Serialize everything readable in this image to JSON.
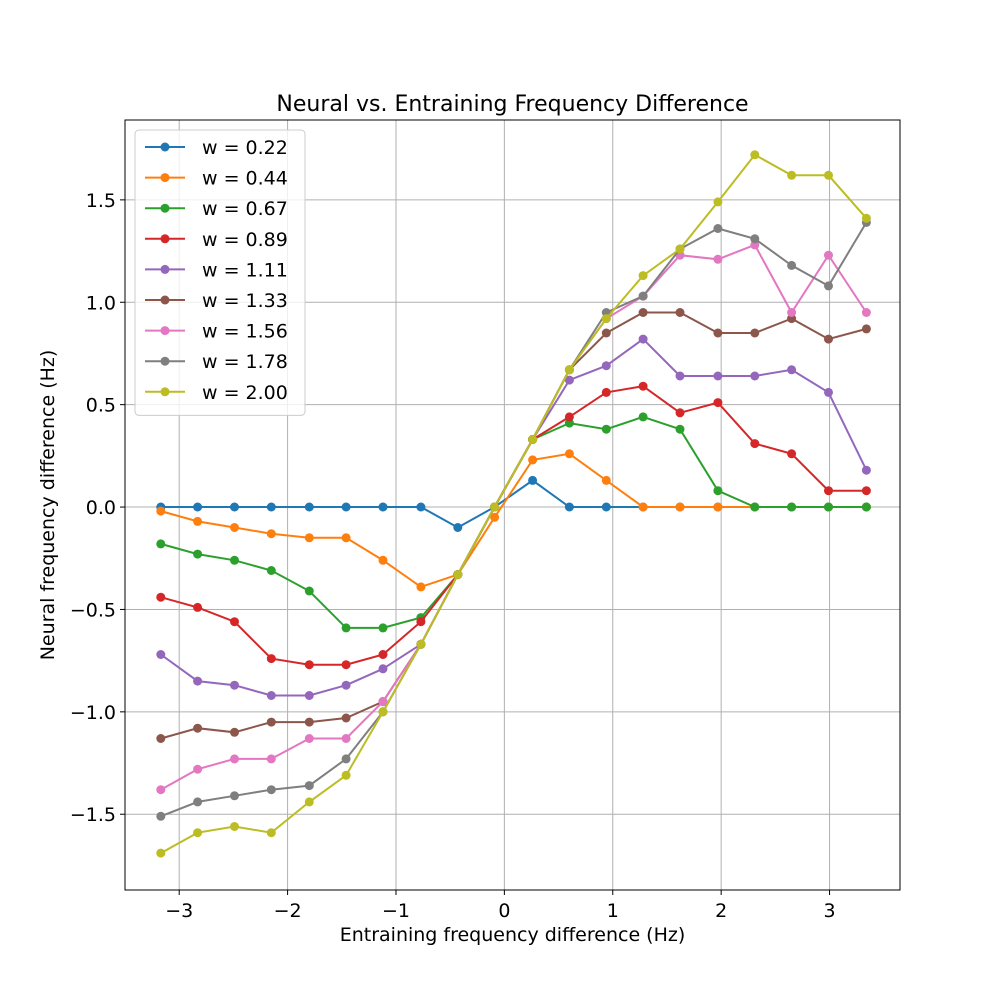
{
  "chart_data": {
    "type": "line",
    "title": "Neural vs. Entraining Frequency Difference",
    "xlabel": "Entraining frequency difference (Hz)",
    "ylabel": "Neural frequency difference (Hz)",
    "xlim": [
      -3.5,
      3.65
    ],
    "ylim": [
      -1.87,
      1.89
    ],
    "xticks": [
      -3,
      -2,
      -1,
      0,
      1,
      2,
      3
    ],
    "xtick_labels": [
      "−3",
      "−2",
      "−1",
      "0",
      "1",
      "2",
      "3"
    ],
    "yticks": [
      -1.5,
      -1.0,
      -0.5,
      0.0,
      0.5,
      1.0,
      1.5
    ],
    "ytick_labels": [
      "−1.5",
      "−1.0",
      "−0.5",
      "0.0",
      "0.5",
      "1.0",
      "1.5"
    ],
    "grid": true,
    "legend_position": "upper-left",
    "x": [
      -3.17,
      -2.83,
      -2.49,
      -2.15,
      -1.8,
      -1.46,
      -1.12,
      -0.77,
      -0.43,
      -0.09,
      0.26,
      0.6,
      0.94,
      1.28,
      1.62,
      1.97,
      2.31,
      2.65,
      2.99,
      3.34
    ],
    "series": [
      {
        "name": "w = 0.22",
        "color": "#1f77b4",
        "values": [
          0,
          0,
          0,
          0,
          0,
          0,
          0,
          0,
          -0.1,
          0,
          0.13,
          0,
          0,
          0,
          0,
          0,
          0,
          0,
          0,
          0
        ]
      },
      {
        "name": "w = 0.44",
        "color": "#ff7f0e",
        "values": [
          -0.02,
          -0.07,
          -0.1,
          -0.13,
          -0.15,
          -0.15,
          -0.26,
          -0.39,
          -0.33,
          -0.05,
          0.23,
          0.26,
          0.13,
          0,
          0,
          0,
          0,
          0,
          0,
          0
        ]
      },
      {
        "name": "w = 0.67",
        "color": "#2ca02c",
        "values": [
          -0.18,
          -0.23,
          -0.26,
          -0.31,
          -0.41,
          -0.59,
          -0.59,
          -0.54,
          -0.33,
          0,
          0.33,
          0.41,
          0.38,
          0.44,
          0.38,
          0.08,
          0,
          0,
          0,
          0
        ]
      },
      {
        "name": "w = 0.89",
        "color": "#d62728",
        "values": [
          -0.44,
          -0.49,
          -0.56,
          -0.74,
          -0.77,
          -0.77,
          -0.72,
          -0.56,
          -0.33,
          0,
          0.33,
          0.44,
          0.56,
          0.59,
          0.46,
          0.51,
          0.31,
          0.26,
          0.08,
          0.08
        ]
      },
      {
        "name": "w = 1.11",
        "color": "#9467bd",
        "values": [
          -0.72,
          -0.85,
          -0.87,
          -0.92,
          -0.92,
          -0.87,
          -0.79,
          -0.67,
          -0.33,
          0,
          0.33,
          0.62,
          0.69,
          0.82,
          0.64,
          0.64,
          0.64,
          0.67,
          0.56,
          0.18
        ]
      },
      {
        "name": "w = 1.33",
        "color": "#8c564b",
        "values": [
          -1.13,
          -1.08,
          -1.1,
          -1.05,
          -1.05,
          -1.03,
          -0.95,
          -0.67,
          -0.33,
          0,
          0.33,
          0.67,
          0.85,
          0.95,
          0.95,
          0.85,
          0.85,
          0.92,
          0.82,
          0.87
        ]
      },
      {
        "name": "w = 1.56",
        "color": "#e377c2",
        "values": [
          -1.38,
          -1.28,
          -1.23,
          -1.23,
          -1.13,
          -1.13,
          -0.95,
          -0.67,
          -0.33,
          0,
          0.33,
          0.67,
          0.92,
          1.03,
          1.23,
          1.21,
          1.28,
          0.95,
          1.23,
          0.95
        ]
      },
      {
        "name": "w = 1.78",
        "color": "#7f7f7f",
        "values": [
          -1.51,
          -1.44,
          -1.41,
          -1.38,
          -1.36,
          -1.23,
          -1.0,
          -0.67,
          -0.33,
          0,
          0.33,
          0.67,
          0.95,
          1.03,
          1.26,
          1.36,
          1.31,
          1.18,
          1.08,
          1.39
        ]
      },
      {
        "name": "w = 2.00",
        "color": "#bcbd22",
        "values": [
          -1.69,
          -1.59,
          -1.56,
          -1.59,
          -1.44,
          -1.31,
          -1.0,
          -0.67,
          -0.33,
          0,
          0.33,
          0.67,
          0.92,
          1.13,
          1.26,
          1.49,
          1.72,
          1.62,
          1.62,
          1.41
        ]
      }
    ]
  }
}
